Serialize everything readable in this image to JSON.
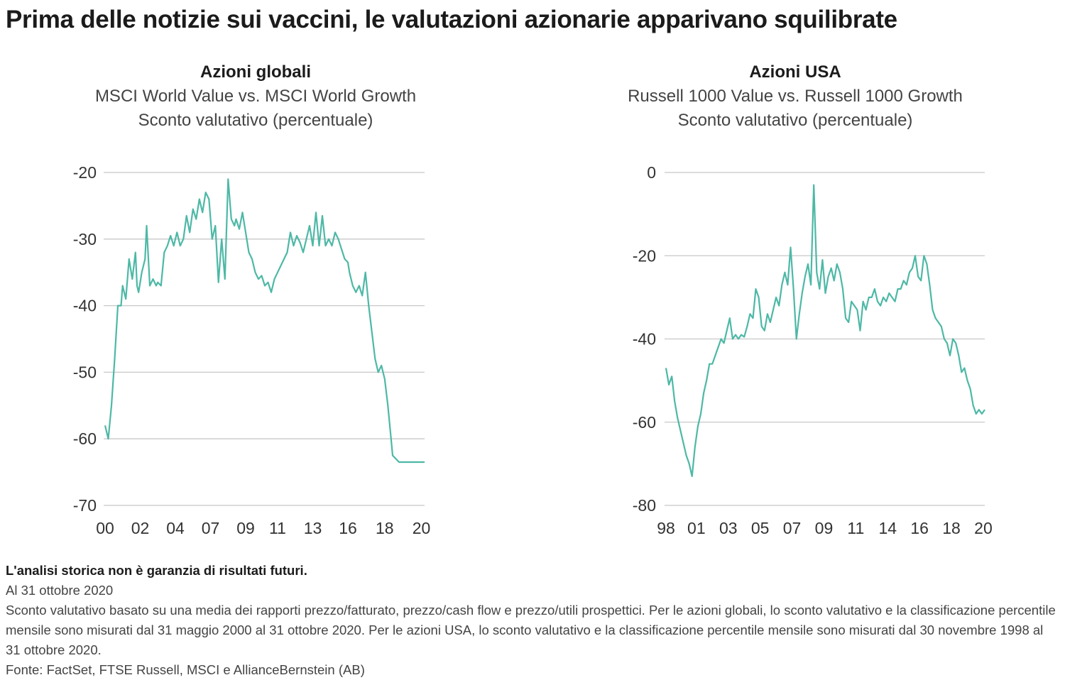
{
  "title": "Prima delle notizie sui vaccini, le valutazioni azionarie apparivano squilibrate",
  "colors": {
    "line": "#4db8a6",
    "grid": "#c8c8c8"
  },
  "chart_data": [
    {
      "type": "line",
      "title": "Azioni globali",
      "subtitle": "MSCI World Value vs. MSCI World Growth",
      "subtitle2": "Sconto valutativo (percentuale)",
      "ylim": [
        -70,
        -20
      ],
      "yticks": [
        -20,
        -30,
        -40,
        -50,
        -60,
        -70
      ],
      "xlim": [
        2000.0,
        2020.0
      ],
      "xticks": [
        {
          "label": "00",
          "value": 2000.0
        },
        {
          "label": "02",
          "value": 2002.2
        },
        {
          "label": "04",
          "value": 2004.4
        },
        {
          "label": "07",
          "value": 2006.6
        },
        {
          "label": "09",
          "value": 2008.8
        },
        {
          "label": "11",
          "value": 2010.8
        },
        {
          "label": "13",
          "value": 2013.0
        },
        {
          "label": "16",
          "value": 2015.2
        },
        {
          "label": "18",
          "value": 2017.5
        },
        {
          "label": "20",
          "value": 2019.8
        }
      ],
      "grid": true,
      "series": [
        {
          "x": [
            2000.0,
            2000.2,
            2000.4,
            2000.6,
            2000.8,
            2001.0,
            2001.1,
            2001.3,
            2001.5,
            2001.7,
            2001.9,
            2002.0,
            2002.1,
            2002.3,
            2002.5,
            2002.6,
            2002.8,
            2003.0,
            2003.2,
            2003.3,
            2003.5,
            2003.7,
            2003.9,
            2004.1,
            2004.3,
            2004.5,
            2004.7,
            2004.9,
            2005.1,
            2005.3,
            2005.5,
            2005.7,
            2005.9,
            2006.1,
            2006.3,
            2006.5,
            2006.7,
            2006.9,
            2007.1,
            2007.3,
            2007.5,
            2007.7,
            2007.9,
            2008.1,
            2008.2,
            2008.4,
            2008.6,
            2008.8,
            2009.0,
            2009.2,
            2009.4,
            2009.6,
            2009.8,
            2010.0,
            2010.2,
            2010.4,
            2010.6,
            2010.8,
            2011.0,
            2011.2,
            2011.4,
            2011.6,
            2011.8,
            2012.0,
            2012.2,
            2012.4,
            2012.6,
            2012.8,
            2013.0,
            2013.2,
            2013.4,
            2013.6,
            2013.8,
            2014.0,
            2014.2,
            2014.4,
            2014.6,
            2014.8,
            2015.0,
            2015.2,
            2015.3,
            2015.5,
            2015.7,
            2015.9,
            2016.1,
            2016.3,
            2016.5,
            2016.7,
            2016.9,
            2017.1,
            2017.3,
            2017.5,
            2017.7,
            2017.9,
            2018.0,
            2018.2,
            2018.4,
            2018.6,
            2018.8,
            2019.0,
            2019.2,
            2019.4,
            2019.6,
            2019.8,
            2020.0
          ],
          "y": [
            -58.0,
            -60.0,
            -55.0,
            -48.0,
            -40.0,
            -40.0,
            -37.0,
            -39.0,
            -33.0,
            -36.0,
            -32.0,
            -37.0,
            -38.0,
            -35.0,
            -33.0,
            -28.0,
            -37.0,
            -36.0,
            -37.0,
            -36.5,
            -37.0,
            -32.0,
            -31.0,
            -29.5,
            -31.0,
            -29.0,
            -31.0,
            -30.0,
            -26.5,
            -29.0,
            -25.5,
            -27.0,
            -24.0,
            -26.0,
            -23.0,
            -24.0,
            -30.0,
            -28.0,
            -36.5,
            -30.0,
            -36.0,
            -21.0,
            -27.0,
            -28.0,
            -27.0,
            -28.5,
            -26.0,
            -29.0,
            -32.0,
            -33.0,
            -35.0,
            -36.0,
            -35.5,
            -37.0,
            -36.5,
            -38.0,
            -36.0,
            -35.0,
            -34.0,
            -33.0,
            -32.0,
            -29.0,
            -31.0,
            -29.5,
            -30.5,
            -32.0,
            -30.0,
            -28.0,
            -31.0,
            -26.0,
            -31.0,
            -26.5,
            -31.0,
            -30.0,
            -31.0,
            -29.0,
            -30.0,
            -31.5,
            -33.0,
            -33.5,
            -35.0,
            -37.0,
            -38.0,
            -37.0,
            -38.5,
            -35.0,
            -40.0,
            -44.0,
            -48.0,
            -50.0,
            -49.0,
            -51.0,
            -55.0,
            -60.0,
            -62.5,
            -63.0,
            -63.5,
            -63.5,
            -63.5,
            -63.5,
            -63.5,
            -63.5,
            -63.5,
            -63.5,
            -63.5
          ]
        }
      ]
    },
    {
      "type": "line",
      "title": "Azioni USA",
      "subtitle": "Russell 1000 Value vs. Russell 1000 Growth",
      "subtitle2": "Sconto valutativo (percentuale)",
      "ylim": [
        -80,
        0
      ],
      "yticks": [
        0,
        -20,
        -40,
        -60,
        -80
      ],
      "xlim": [
        1998.0,
        2020.0
      ],
      "xticks": [
        {
          "label": "98",
          "value": 1998.0
        },
        {
          "label": "01",
          "value": 2000.1
        },
        {
          "label": "03",
          "value": 2002.3
        },
        {
          "label": "05",
          "value": 2004.5
        },
        {
          "label": "07",
          "value": 2006.7
        },
        {
          "label": "09",
          "value": 2008.9
        },
        {
          "label": "11",
          "value": 2011.1
        },
        {
          "label": "14",
          "value": 2013.3
        },
        {
          "label": "16",
          "value": 2015.5
        },
        {
          "label": "18",
          "value": 2017.7
        },
        {
          "label": "20",
          "value": 2019.9
        }
      ],
      "grid": true,
      "series": [
        {
          "x": [
            1998.0,
            1998.2,
            1998.4,
            1998.6,
            1998.8,
            1999.0,
            1999.2,
            1999.4,
            1999.6,
            1999.8,
            2000.0,
            2000.2,
            2000.4,
            2000.6,
            2000.8,
            2001.0,
            2001.2,
            2001.4,
            2001.6,
            2001.8,
            2002.0,
            2002.2,
            2002.4,
            2002.6,
            2002.8,
            2003.0,
            2003.2,
            2003.4,
            2003.6,
            2003.8,
            2004.0,
            2004.2,
            2004.4,
            2004.6,
            2004.8,
            2005.0,
            2005.2,
            2005.4,
            2005.6,
            2005.8,
            2006.0,
            2006.2,
            2006.4,
            2006.6,
            2006.8,
            2007.0,
            2007.2,
            2007.4,
            2007.6,
            2007.8,
            2008.0,
            2008.2,
            2008.4,
            2008.6,
            2008.8,
            2009.0,
            2009.2,
            2009.4,
            2009.6,
            2009.8,
            2010.0,
            2010.2,
            2010.4,
            2010.6,
            2010.8,
            2011.0,
            2011.2,
            2011.4,
            2011.6,
            2011.8,
            2012.0,
            2012.2,
            2012.4,
            2012.6,
            2012.8,
            2013.0,
            2013.2,
            2013.4,
            2013.6,
            2013.8,
            2014.0,
            2014.2,
            2014.4,
            2014.6,
            2014.8,
            2015.0,
            2015.2,
            2015.4,
            2015.6,
            2015.8,
            2016.0,
            2016.2,
            2016.4,
            2016.6,
            2016.8,
            2017.0,
            2017.2,
            2017.4,
            2017.6,
            2017.8,
            2018.0,
            2018.2,
            2018.4,
            2018.6,
            2018.8,
            2019.0,
            2019.2,
            2019.4,
            2019.6,
            2019.8,
            2020.0
          ],
          "y": [
            -47.0,
            -51.0,
            -49.0,
            -55.0,
            -59.0,
            -62.0,
            -65.0,
            -68.0,
            -70.0,
            -73.0,
            -66.0,
            -61.0,
            -58.0,
            -53.0,
            -50.0,
            -46.0,
            -46.0,
            -44.0,
            -42.0,
            -40.0,
            -41.0,
            -38.0,
            -35.0,
            -40.0,
            -39.0,
            -40.0,
            -39.0,
            -39.5,
            -37.0,
            -34.0,
            -35.0,
            -28.0,
            -30.0,
            -37.0,
            -38.0,
            -34.0,
            -36.0,
            -33.0,
            -30.0,
            -32.0,
            -27.0,
            -24.0,
            -27.0,
            -18.0,
            -28.0,
            -40.0,
            -34.0,
            -29.0,
            -25.0,
            -22.0,
            -27.0,
            -3.0,
            -24.0,
            -28.0,
            -21.0,
            -29.0,
            -25.0,
            -23.0,
            -26.0,
            -22.0,
            -24.0,
            -28.0,
            -35.0,
            -36.0,
            -31.0,
            -32.0,
            -33.0,
            -38.0,
            -31.0,
            -33.0,
            -30.0,
            -30.0,
            -28.0,
            -31.0,
            -32.0,
            -30.0,
            -31.0,
            -29.0,
            -30.0,
            -31.0,
            -28.0,
            -28.0,
            -26.0,
            -27.0,
            -24.0,
            -23.0,
            -20.0,
            -25.0,
            -26.0,
            -20.0,
            -22.0,
            -27.0,
            -33.0,
            -35.0,
            -36.0,
            -37.0,
            -40.0,
            -41.0,
            -44.0,
            -40.0,
            -41.0,
            -44.0,
            -48.0,
            -47.0,
            -50.0,
            -52.0,
            -56.0,
            -58.0,
            -57.0,
            -58.0,
            -57.0
          ]
        }
      ]
    }
  ],
  "notes": {
    "disclaimer": "L'analisi storica non è garanzia di risultati futuri.",
    "date": "Al 31 ottobre 2020",
    "methodology": "Sconto valutativo basato su una media dei rapporti prezzo/fatturato, prezzo/cash flow e prezzo/utili prospettici. Per le azioni globali, lo sconto valutativo e la classificazione percentile mensile sono misurati dal 31 maggio 2000 al 31 ottobre 2020. Per le azioni USA, lo sconto valutativo e la classificazione percentile mensile sono misurati dal 30 novembre 1998 al 31 ottobre 2020.",
    "source": "Fonte: FactSet, FTSE Russell, MSCI e AllianceBernstein (AB)"
  }
}
